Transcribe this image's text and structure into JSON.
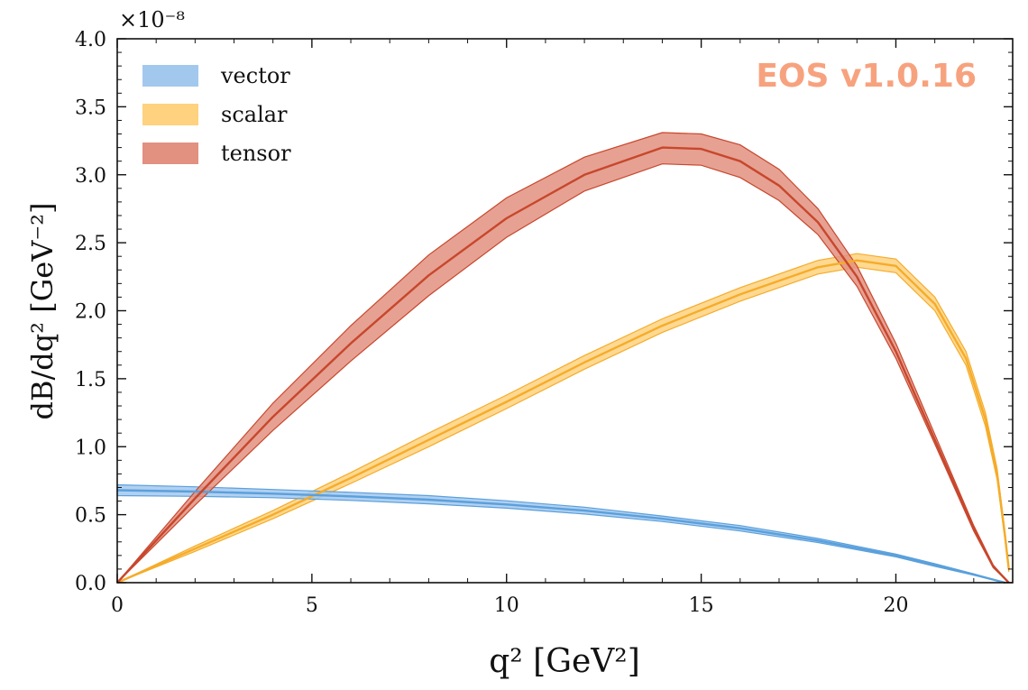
{
  "chart_data": {
    "type": "area",
    "title": "",
    "xlabel": "q² [GeV²]",
    "ylabel": "dB/dq² [GeV⁻²]",
    "y_multiplier": "×10⁻⁸",
    "xlim": [
      0,
      23
    ],
    "ylim": [
      0,
      4.0
    ],
    "x_ticks": [
      0,
      5,
      10,
      15,
      20
    ],
    "x_tick_labels": [
      "0",
      "5",
      "10",
      "15",
      "20"
    ],
    "y_ticks": [
      0,
      0.5,
      1.0,
      1.5,
      2.0,
      2.5,
      3.0,
      3.5,
      4.0
    ],
    "y_tick_labels": [
      "0.0",
      "0.5",
      "1.0",
      "1.5",
      "2.0",
      "2.5",
      "3.0",
      "3.5",
      "4.0"
    ],
    "legend_position": "top-left",
    "watermark": "EOS v1.0.16",
    "watermark_color": "#f7a27e",
    "series": [
      {
        "name": "vector",
        "color": "#5aa0dc",
        "band_color": "#a3c8ee",
        "x": [
          0,
          2,
          4,
          6,
          8,
          10,
          12,
          14,
          16,
          18,
          20,
          21,
          22,
          22.8
        ],
        "y": [
          0.68,
          0.67,
          0.655,
          0.635,
          0.61,
          0.575,
          0.53,
          0.47,
          0.4,
          0.31,
          0.2,
          0.13,
          0.06,
          0.0
        ],
        "y_low": [
          0.64,
          0.635,
          0.625,
          0.605,
          0.58,
          0.548,
          0.505,
          0.45,
          0.38,
          0.295,
          0.19,
          0.12,
          0.055,
          0.0
        ],
        "y_high": [
          0.72,
          0.705,
          0.685,
          0.665,
          0.64,
          0.602,
          0.555,
          0.49,
          0.42,
          0.325,
          0.21,
          0.14,
          0.065,
          0.0
        ]
      },
      {
        "name": "scalar",
        "color": "#f5ac2a",
        "band_color": "#ffd27f",
        "x": [
          0,
          2,
          4,
          6,
          8,
          10,
          12,
          14,
          16,
          18,
          19,
          20,
          21,
          21.8,
          22.3,
          22.6,
          22.8,
          22.9
        ],
        "y": [
          0.0,
          0.25,
          0.5,
          0.77,
          1.05,
          1.33,
          1.62,
          1.89,
          2.12,
          2.32,
          2.37,
          2.33,
          2.05,
          1.65,
          1.2,
          0.8,
          0.35,
          0.1
        ],
        "y_low": [
          0.0,
          0.23,
          0.47,
          0.73,
          1.0,
          1.28,
          1.57,
          1.84,
          2.07,
          2.27,
          2.32,
          2.28,
          2.0,
          1.6,
          1.15,
          0.76,
          0.32,
          0.08
        ],
        "y_high": [
          0.0,
          0.27,
          0.53,
          0.81,
          1.1,
          1.38,
          1.67,
          1.94,
          2.17,
          2.37,
          2.42,
          2.38,
          2.1,
          1.7,
          1.25,
          0.84,
          0.38,
          0.12
        ]
      },
      {
        "name": "tensor",
        "color": "#c8472c",
        "band_color": "#e29080",
        "x": [
          0,
          2,
          4,
          6,
          8,
          10,
          12,
          14,
          15,
          16,
          17,
          18,
          19,
          20,
          21,
          22,
          22.5,
          22.9
        ],
        "y": [
          0.0,
          0.62,
          1.22,
          1.76,
          2.26,
          2.68,
          3.0,
          3.2,
          3.19,
          3.1,
          2.92,
          2.65,
          2.25,
          1.7,
          1.05,
          0.4,
          0.12,
          0.0
        ],
        "y_low": [
          0.0,
          0.57,
          1.12,
          1.63,
          2.11,
          2.54,
          2.88,
          3.08,
          3.07,
          2.98,
          2.81,
          2.56,
          2.18,
          1.65,
          1.02,
          0.38,
          0.11,
          0.0
        ],
        "y_high": [
          0.0,
          0.67,
          1.32,
          1.89,
          2.41,
          2.83,
          3.13,
          3.31,
          3.3,
          3.22,
          3.04,
          2.75,
          2.33,
          1.76,
          1.09,
          0.42,
          0.13,
          0.0
        ]
      }
    ]
  }
}
